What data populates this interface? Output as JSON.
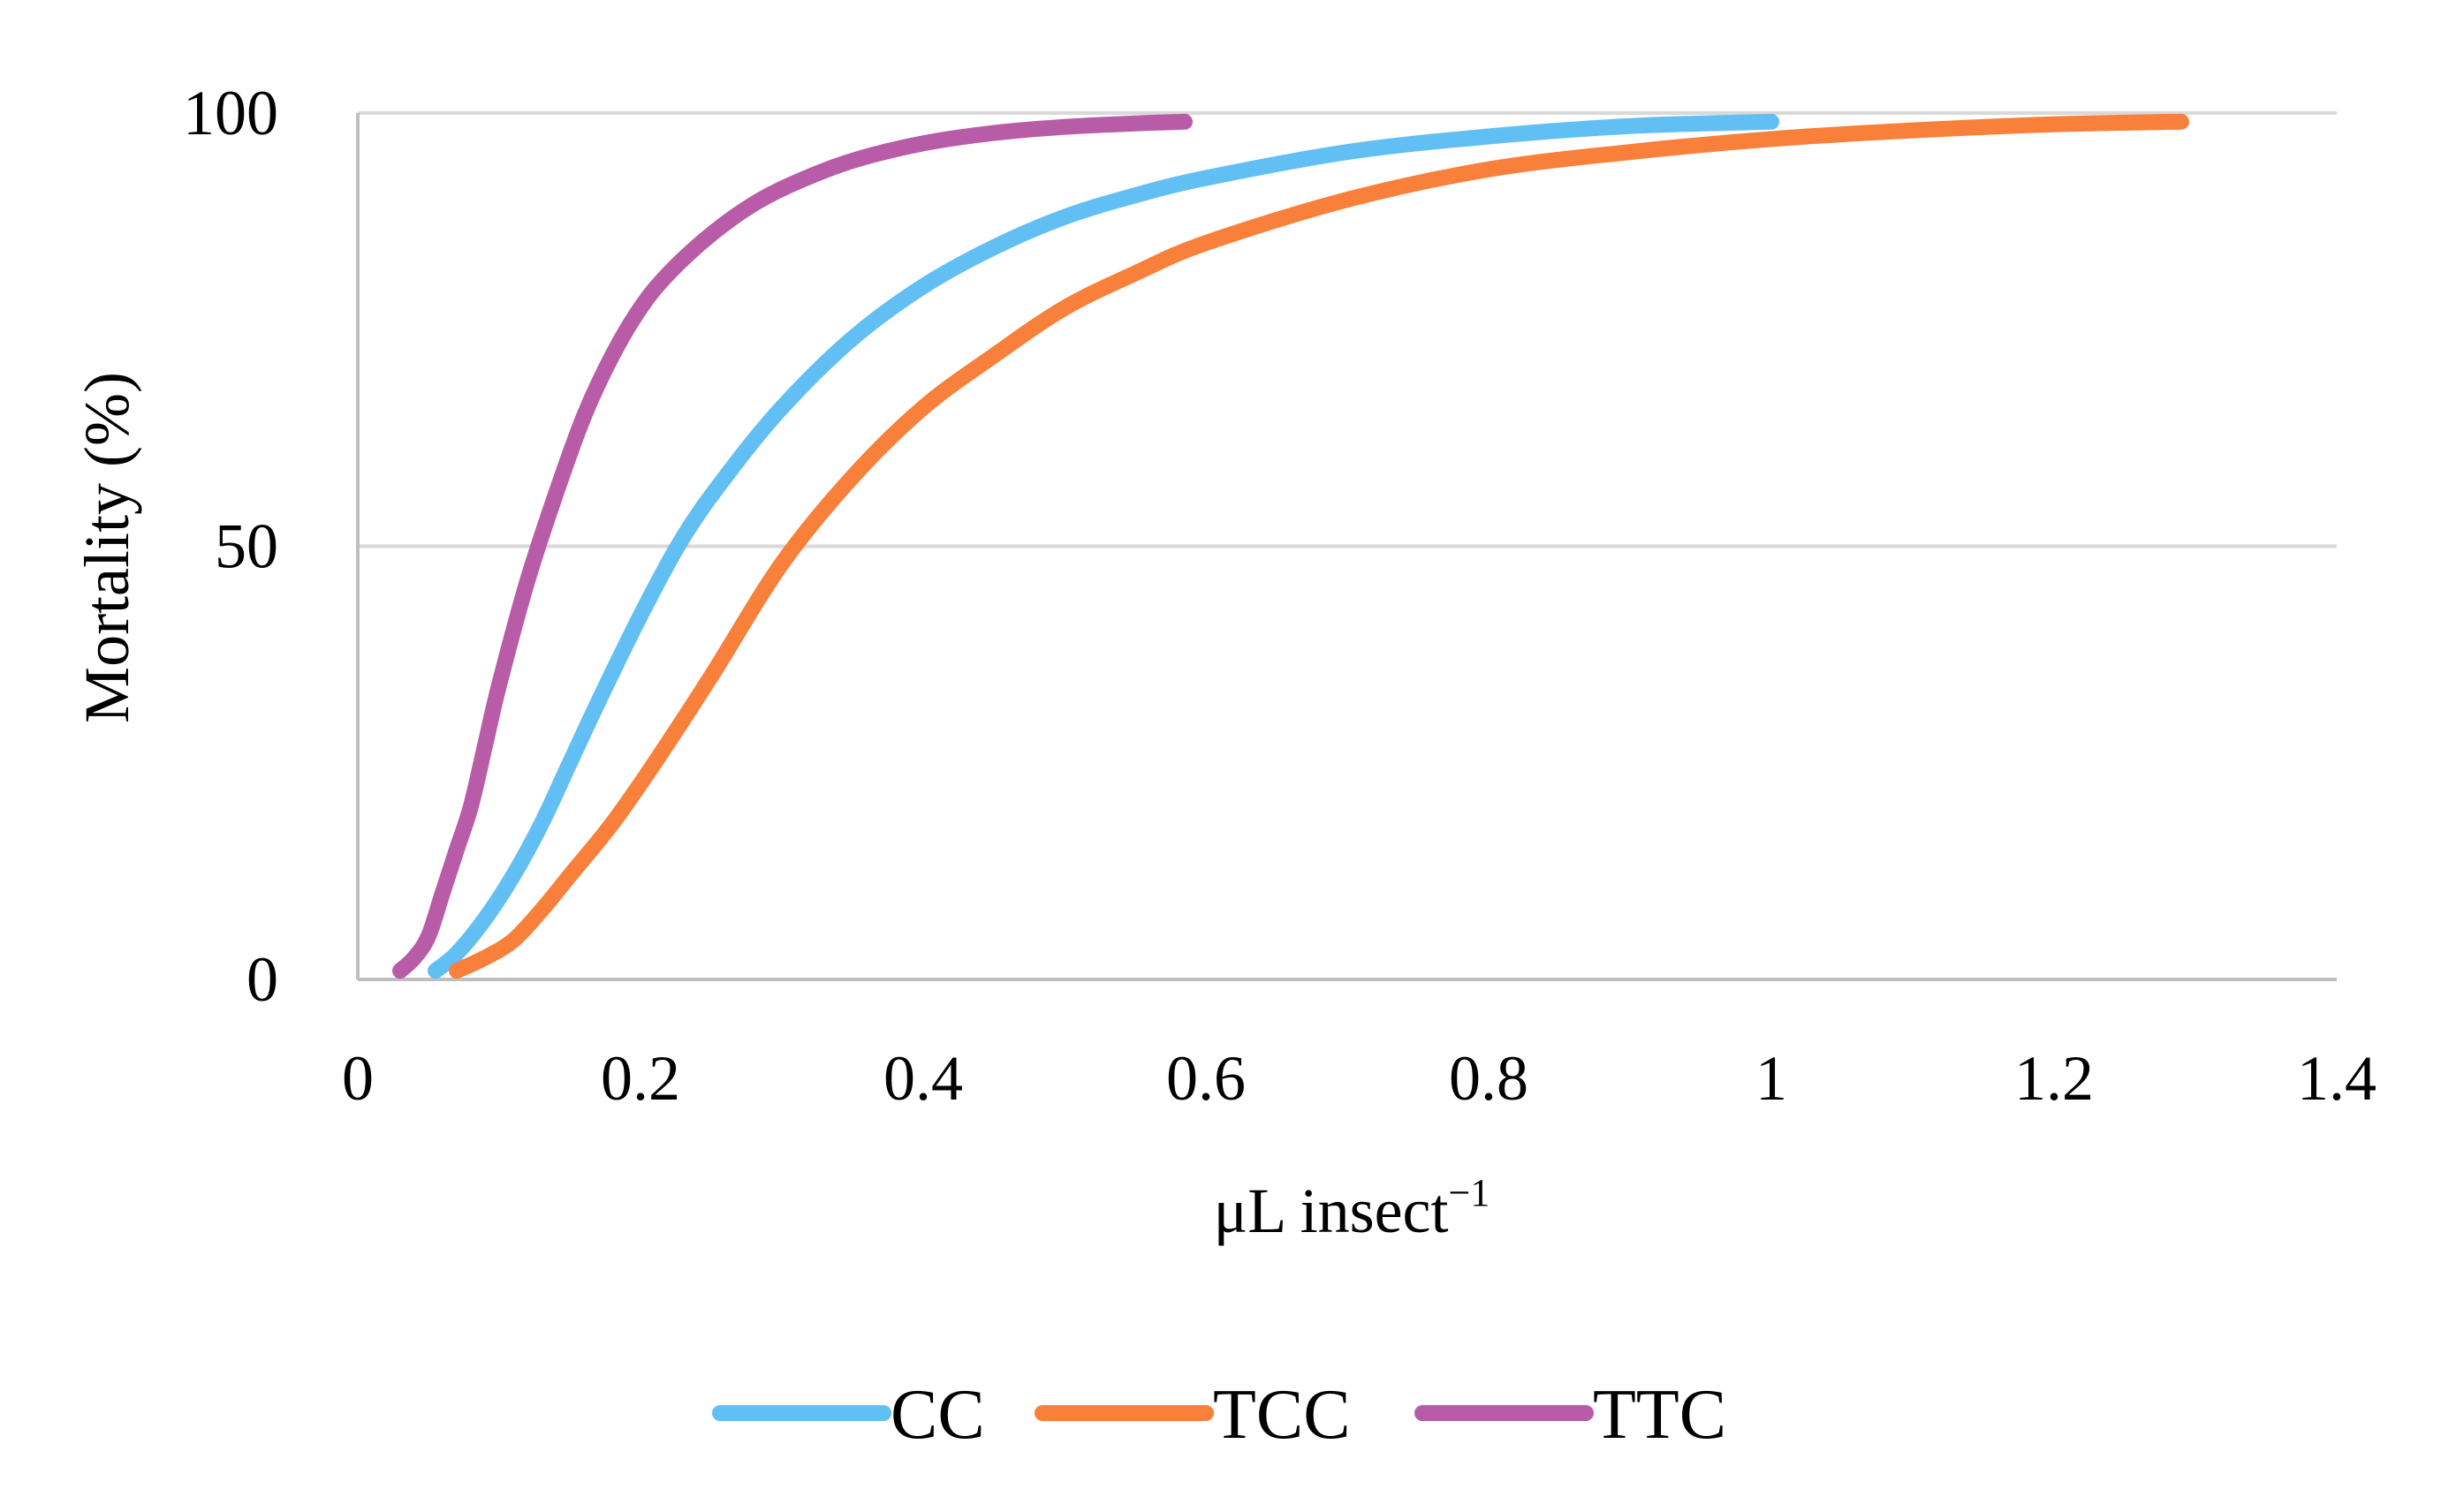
{
  "chart_data": {
    "type": "line",
    "title": "",
    "xlabel": "μL insect",
    "xlabel_superscript": "−1",
    "ylabel": "Mortality (%)",
    "xlim": [
      0,
      1.4
    ],
    "ylim": [
      0,
      100
    ],
    "xticks": [
      0,
      0.2,
      0.4,
      0.6,
      0.8,
      1,
      1.2,
      1.4
    ],
    "xtick_labels": [
      "0",
      "0.2",
      "0.4",
      "0.6",
      "0.8",
      "1",
      "1.2",
      "1.4"
    ],
    "yticks": [
      0,
      50,
      100
    ],
    "ytick_labels": [
      "0",
      "50",
      "100"
    ],
    "grid": "horizontal",
    "legend_position": "bottom",
    "series": [
      {
        "name": "CC",
        "color": "#62BFF3",
        "x": [
          0.055,
          0.07,
          0.09,
          0.11,
          0.13,
          0.15,
          0.17,
          0.2,
          0.23,
          0.26,
          0.3,
          0.35,
          0.4,
          0.45,
          0.5,
          0.55,
          0.6,
          0.7,
          0.8,
          0.9,
          1.0
        ],
        "y": [
          1,
          3,
          7,
          12,
          18,
          25,
          32,
          42,
          51,
          58,
          66,
          74,
          80,
          84.5,
          88,
          90.5,
          92.5,
          95.5,
          97.3,
          98.5,
          99
        ]
      },
      {
        "name": "TCC",
        "color": "#F8803A",
        "x": [
          0.07,
          0.09,
          0.11,
          0.13,
          0.15,
          0.18,
          0.21,
          0.25,
          0.3,
          0.35,
          0.4,
          0.45,
          0.5,
          0.55,
          0.6,
          0.7,
          0.8,
          0.9,
          1.0,
          1.1,
          1.2,
          1.29
        ],
        "y": [
          1,
          2.5,
          4.5,
          8,
          12,
          18,
          25,
          35,
          48,
          58,
          66,
          72,
          77.5,
          81.5,
          85,
          90,
          93.5,
          95.5,
          97,
          98,
          98.7,
          99
        ]
      },
      {
        "name": "TTC",
        "color": "#B95CA8",
        "x": [
          0.03,
          0.04,
          0.05,
          0.06,
          0.07,
          0.08,
          0.09,
          0.1,
          0.12,
          0.14,
          0.16,
          0.18,
          0.2,
          0.22,
          0.25,
          0.28,
          0.31,
          0.35,
          0.4,
          0.45,
          0.5,
          0.55,
          0.585
        ],
        "y": [
          1,
          2.5,
          5,
          10,
          15,
          20,
          27,
          34,
          46,
          56,
          65,
          72,
          77.5,
          81.5,
          86,
          89.5,
          92,
          94.5,
          96.5,
          97.7,
          98.4,
          98.8,
          99
        ]
      }
    ]
  }
}
